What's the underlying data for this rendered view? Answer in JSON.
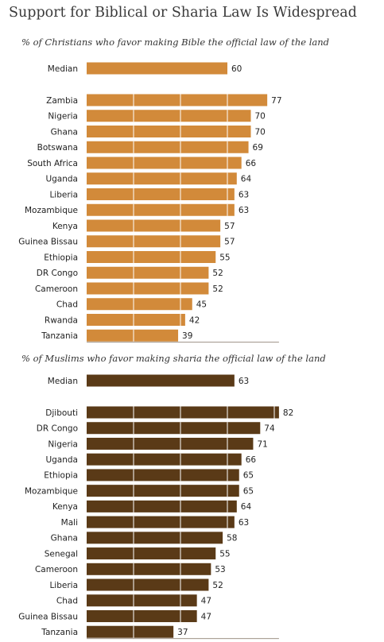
{
  "title": "Support for Biblical or Sharia Law Is Widespread",
  "colors": {
    "christian_bar": "#d28a3a",
    "muslim_bar": "#5a3a17",
    "grid": "#ffffff",
    "axis": "#7a6a5a"
  },
  "chart_data": [
    {
      "type": "bar",
      "orientation": "horizontal",
      "title": "% of Christians who favor making Bible the official law of the land",
      "median": {
        "label": "Median",
        "value": 60
      },
      "categories": [
        "Zambia",
        "Nigeria",
        "Ghana",
        "Botswana",
        "South Africa",
        "Uganda",
        "Liberia",
        "Mozambique",
        "Kenya",
        "Guinea Bissau",
        "Ethiopia",
        "DR Congo",
        "Cameroon",
        "Chad",
        "Rwanda",
        "Tanzania"
      ],
      "values": [
        77,
        70,
        70,
        69,
        66,
        64,
        63,
        63,
        57,
        57,
        55,
        52,
        52,
        45,
        42,
        39
      ],
      "xlim": [
        0,
        100
      ],
      "grid": true
    },
    {
      "type": "bar",
      "orientation": "horizontal",
      "title": "% of Muslims who favor making sharia the official law of the land",
      "median": {
        "label": "Median",
        "value": 63
      },
      "categories": [
        "Djibouti",
        "DR Congo",
        "Nigeria",
        "Uganda",
        "Ethiopia",
        "Mozambique",
        "Kenya",
        "Mali",
        "Ghana",
        "Senegal",
        "Cameroon",
        "Liberia",
        "Chad",
        "Guinea Bissau",
        "Tanzania"
      ],
      "values": [
        82,
        74,
        71,
        66,
        65,
        65,
        64,
        63,
        58,
        55,
        53,
        52,
        47,
        47,
        37
      ],
      "xlim": [
        0,
        100
      ],
      "grid": true
    }
  ]
}
